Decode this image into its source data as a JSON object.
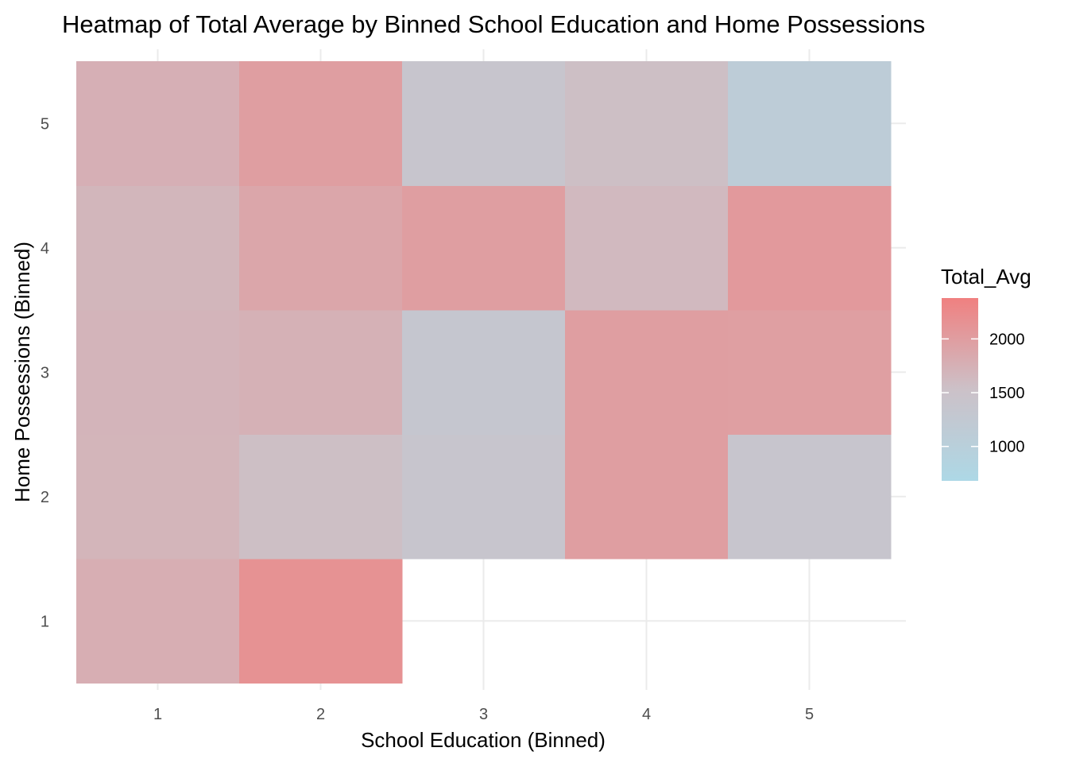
{
  "chart_data": {
    "type": "heatmap",
    "title": "Heatmap of Total Average by Binned School Education and Home Possessions",
    "xlabel": "School Education (Binned)",
    "ylabel": "Home Possessions (Binned)",
    "x_categories": [
      "1",
      "2",
      "3",
      "4",
      "5"
    ],
    "y_categories": [
      "1",
      "2",
      "3",
      "4",
      "5"
    ],
    "cells": [
      {
        "x": "1",
        "y": "1",
        "value": 1780
      },
      {
        "x": "2",
        "y": "1",
        "value": 2150
      },
      {
        "x": "1",
        "y": "2",
        "value": 1690
      },
      {
        "x": "2",
        "y": "2",
        "value": 1560
      },
      {
        "x": "3",
        "y": "2",
        "value": 1390
      },
      {
        "x": "4",
        "y": "2",
        "value": 1990
      },
      {
        "x": "5",
        "y": "2",
        "value": 1380
      },
      {
        "x": "1",
        "y": "3",
        "value": 1700
      },
      {
        "x": "2",
        "y": "3",
        "value": 1740
      },
      {
        "x": "3",
        "y": "3",
        "value": 1330
      },
      {
        "x": "4",
        "y": "3",
        "value": 1990
      },
      {
        "x": "5",
        "y": "3",
        "value": 1980
      },
      {
        "x": "1",
        "y": "4",
        "value": 1680
      },
      {
        "x": "2",
        "y": "4",
        "value": 1880
      },
      {
        "x": "3",
        "y": "4",
        "value": 1990
      },
      {
        "x": "4",
        "y": "4",
        "value": 1640
      },
      {
        "x": "5",
        "y": "4",
        "value": 2050
      },
      {
        "x": "1",
        "y": "5",
        "value": 1760
      },
      {
        "x": "2",
        "y": "5",
        "value": 1990
      },
      {
        "x": "3",
        "y": "5",
        "value": 1380
      },
      {
        "x": "4",
        "y": "5",
        "value": 1560
      },
      {
        "x": "5",
        "y": "5",
        "value": 1110
      }
    ],
    "legend": {
      "title": "Total_Avg",
      "breaks": [
        1000,
        1500,
        2000
      ],
      "range": [
        680,
        2380
      ],
      "low_color": "#add8e6",
      "mid_color": "#ccc1c8",
      "high_color": "#f08080",
      "placement": "right"
    },
    "grid": true
  }
}
